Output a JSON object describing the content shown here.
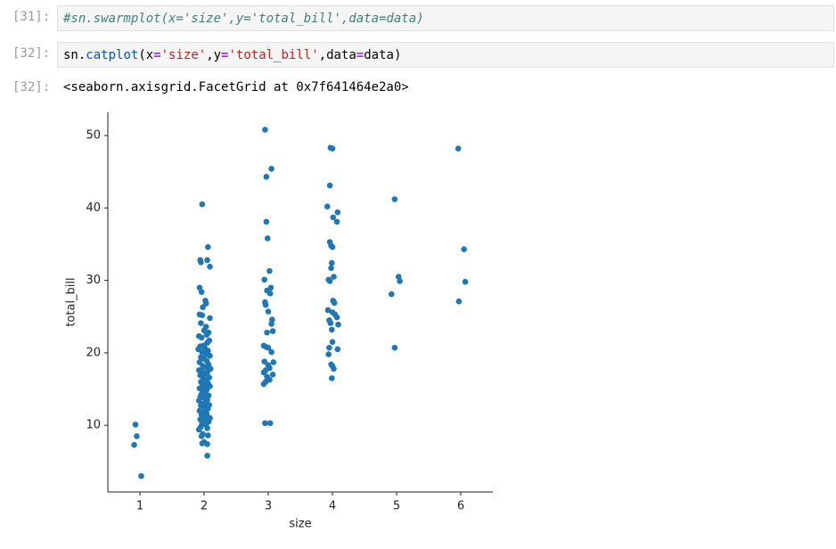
{
  "cells": [
    {
      "prompt": "[31]:",
      "tokens": [
        {
          "text": "#sn.swarmplot(x='size',y='total_bill',data=data)",
          "color": "#408080",
          "italic": true
        }
      ]
    },
    {
      "prompt": "[32]:",
      "tokens": [
        {
          "text": "sn.",
          "color": "#000000"
        },
        {
          "text": "catplot",
          "color": "#0055aa"
        },
        {
          "text": "(x",
          "color": "#000000"
        },
        {
          "text": "=",
          "color": "#aa22ff",
          "bold": true
        },
        {
          "text": "'size'",
          "color": "#ba2121"
        },
        {
          "text": ",y",
          "color": "#000000"
        },
        {
          "text": "=",
          "color": "#aa22ff",
          "bold": true
        },
        {
          "text": "'total_bill'",
          "color": "#ba2121"
        },
        {
          "text": ",data",
          "color": "#000000"
        },
        {
          "text": "=",
          "color": "#aa22ff",
          "bold": true
        },
        {
          "text": "data)",
          "color": "#000000"
        }
      ]
    }
  ],
  "output": {
    "prompt": "[32]:",
    "text": "<seaborn.axisgrid.FacetGrid at 0x7f641464e2a0>"
  },
  "chart_data": {
    "type": "scatter",
    "xlabel": "size",
    "ylabel": "total_bill",
    "color": "#1f77b4",
    "xlim": [
      0.5,
      6.5
    ],
    "ylim": [
      0.8,
      53.2
    ],
    "xticks": [
      1,
      2,
      3,
      4,
      5,
      6
    ],
    "yticks": [
      10,
      20,
      30,
      40,
      50
    ],
    "x": [
      0.93,
      0.95,
      0.91,
      1.02,
      1.97,
      2.06,
      1.94,
      1.95,
      2.05,
      2.09,
      1.93,
      1.96,
      2.02,
      2.03,
      1.98,
      1.93,
      1.97,
      2.09,
      1.95,
      2.03,
      2.0,
      2.07,
      2.04,
      1.92,
      1.96,
      2.08,
      2.05,
      1.99,
      1.94,
      2.01,
      1.91,
      2.06,
      1.97,
      2.03,
      2.09,
      1.95,
      2.0,
      2.04,
      1.93,
      2.07,
      1.98,
      2.02,
      2.1,
      1.92,
      1.96,
      2.05,
      2.01,
      1.94,
      2.08,
      1.99,
      2.03,
      1.95,
      2.06,
      1.97,
      2.01,
      2.09,
      1.93,
      2.04,
      1.98,
      2.02,
      1.96,
      2.07,
      1.94,
      2.0,
      2.05,
      1.92,
      2.03,
      1.97,
      2.08,
      1.95,
      2.01,
      2.06,
      1.93,
      1.99,
      2.04,
      1.96,
      2.02,
      2.09,
      1.94,
      2.0,
      2.07,
      1.97,
      2.03,
      1.95,
      2.05,
      1.92,
      1.98,
      2.06,
      1.96,
      2.0,
      1.97,
      2.05,
      2.05,
      2.95,
      3.05,
      2.97,
      2.97,
      2.99,
      3.02,
      2.94,
      3.04,
      2.98,
      3.03,
      2.95,
      2.96,
      3.0,
      3.06,
      3.05,
      3.07,
      2.98,
      2.93,
      2.97,
      3.0,
      3.05,
      2.94,
      3.08,
      3.0,
      3.02,
      2.96,
      2.93,
      3.07,
      2.98,
      3.02,
      2.96,
      2.93,
      2.95,
      3.03,
      3.97,
      4.0,
      3.96,
      3.92,
      4.08,
      4.01,
      4.07,
      3.96,
      3.98,
      4.0,
      3.99,
      3.98,
      4.02,
      3.94,
      3.96,
      4.01,
      4.03,
      3.93,
      4.0,
      4.04,
      4.07,
      3.95,
      3.97,
      4.09,
      3.99,
      4.0,
      3.95,
      4.08,
      3.94,
      3.98,
      4.0,
      4.02,
      3.99,
      4.97,
      5.03,
      5.05,
      4.92,
      4.97,
      5.96,
      6.05,
      6.07,
      5.97
    ],
    "values": [
      10.1,
      8.5,
      7.3,
      3.0,
      40.5,
      34.6,
      32.8,
      32.5,
      32.8,
      31.9,
      29.0,
      28.4,
      27.2,
      26.8,
      26.3,
      25.3,
      25.2,
      24.8,
      24.1,
      23.6,
      23.1,
      22.8,
      22.5,
      22.3,
      22.1,
      21.7,
      21.4,
      21.0,
      20.9,
      20.7,
      20.5,
      20.3,
      20.1,
      19.8,
      19.6,
      19.4,
      19.2,
      18.9,
      18.7,
      18.4,
      18.2,
      18.0,
      17.8,
      17.6,
      17.5,
      17.3,
      17.1,
      16.9,
      16.6,
      16.5,
      16.3,
      16.0,
      15.8,
      15.7,
      15.5,
      15.4,
      15.1,
      14.9,
      14.8,
      14.5,
      14.3,
      14.1,
      13.9,
      13.8,
      13.5,
      13.4,
      13.2,
      13.0,
      12.8,
      12.7,
      12.5,
      12.3,
      12.0,
      11.9,
      11.6,
      11.4,
      11.2,
      11.0,
      10.8,
      10.6,
      10.5,
      10.3,
      10.1,
      9.8,
      9.6,
      9.4,
      8.8,
      8.6,
      8.5,
      7.7,
      7.5,
      7.4,
      5.8,
      50.8,
      45.4,
      44.3,
      38.1,
      35.8,
      31.3,
      30.1,
      29.0,
      28.6,
      28.2,
      27.0,
      26.6,
      25.7,
      24.6,
      24.0,
      23.0,
      22.8,
      21.0,
      20.8,
      20.7,
      20.1,
      18.8,
      18.7,
      18.3,
      17.9,
      17.6,
      17.3,
      17.0,
      16.7,
      16.3,
      16.0,
      15.7,
      10.3,
      10.3,
      48.3,
      48.2,
      43.1,
      40.2,
      39.4,
      38.7,
      38.1,
      35.3,
      34.8,
      34.6,
      32.4,
      31.7,
      30.5,
      30.1,
      29.9,
      27.2,
      26.9,
      25.9,
      25.6,
      25.3,
      24.9,
      24.5,
      24.1,
      23.9,
      23.2,
      21.5,
      20.7,
      20.5,
      19.8,
      18.4,
      18.2,
      17.8,
      16.5,
      41.2,
      30.5,
      29.9,
      28.1,
      20.7,
      48.2,
      34.3,
      29.8,
      27.1
    ]
  }
}
